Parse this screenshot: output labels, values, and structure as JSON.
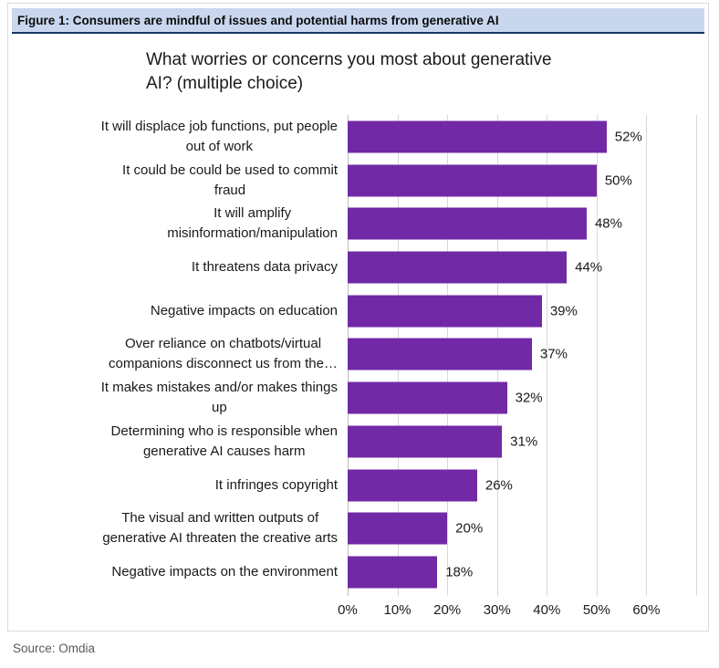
{
  "figure_header": {
    "label": "Figure 1: Consumers are mindful of issues and potential harms from generative AI"
  },
  "chart_data": {
    "type": "bar",
    "orientation": "horizontal",
    "title": "What worries or concerns you most about generative AI? (multiple choice)",
    "title_wrapped": "What worries or concerns you most about generative\nAI? (multiple choice)",
    "categories": [
      "It will displace job functions, put people out of work",
      "It could be could be used to commit fraud",
      "It will amplify misinformation/manipulation",
      "It threatens data privacy",
      "Negative impacts on education",
      "Over reliance on chatbots/virtual companions disconnect us from the…",
      "It makes mistakes and/or makes things up",
      "Determining who is responsible when generative AI causes harm",
      "It infringes copyright",
      "The visual and written outputs of generative AI threaten the creative arts",
      "Negative impacts on the environment"
    ],
    "categories_wrapped": [
      "It will displace job functions, put people\nout of work",
      "It could be could be used to commit\nfraud",
      "It will amplify\nmisinformation/manipulation",
      "It threatens data privacy",
      "Negative impacts on education",
      "Over reliance on chatbots/virtual\ncompanions disconnect us from the…",
      "It makes mistakes and/or makes things\nup",
      "Determining who is responsible when\ngenerative AI causes harm",
      "It infringes copyright",
      "The visual and written outputs of\ngenerative AI threaten the creative arts",
      "Negative impacts on the environment"
    ],
    "values": [
      52,
      50,
      48,
      44,
      39,
      37,
      32,
      31,
      26,
      20,
      18
    ],
    "value_labels": [
      "52%",
      "50%",
      "48%",
      "44%",
      "39%",
      "37%",
      "32%",
      "31%",
      "26%",
      "20%",
      "18%"
    ],
    "xlabel": "",
    "ylabel": "",
    "xlim": [
      0,
      70
    ],
    "x_tick_labels": [
      "0%",
      "10%",
      "20%",
      "30%",
      "40%",
      "50%",
      "60%"
    ],
    "x_tick_values": [
      0,
      10,
      20,
      30,
      40,
      50,
      60
    ],
    "x_gridline_values": [
      0,
      10,
      20,
      30,
      40,
      50,
      60,
      70
    ],
    "grid": true,
    "legend": false,
    "bar_color": "#7229A6"
  },
  "source": {
    "label": "Source: Omdia"
  },
  "colors": {
    "bar": "#7229A6",
    "header_bg": "#C8D7EE",
    "header_border": "#17375E",
    "figure_border": "#D5DBE4",
    "grid_line": "#D9D9D9",
    "axis_line": "#BFBFBF",
    "text": "#1A1A1A",
    "source_text": "#595959"
  }
}
